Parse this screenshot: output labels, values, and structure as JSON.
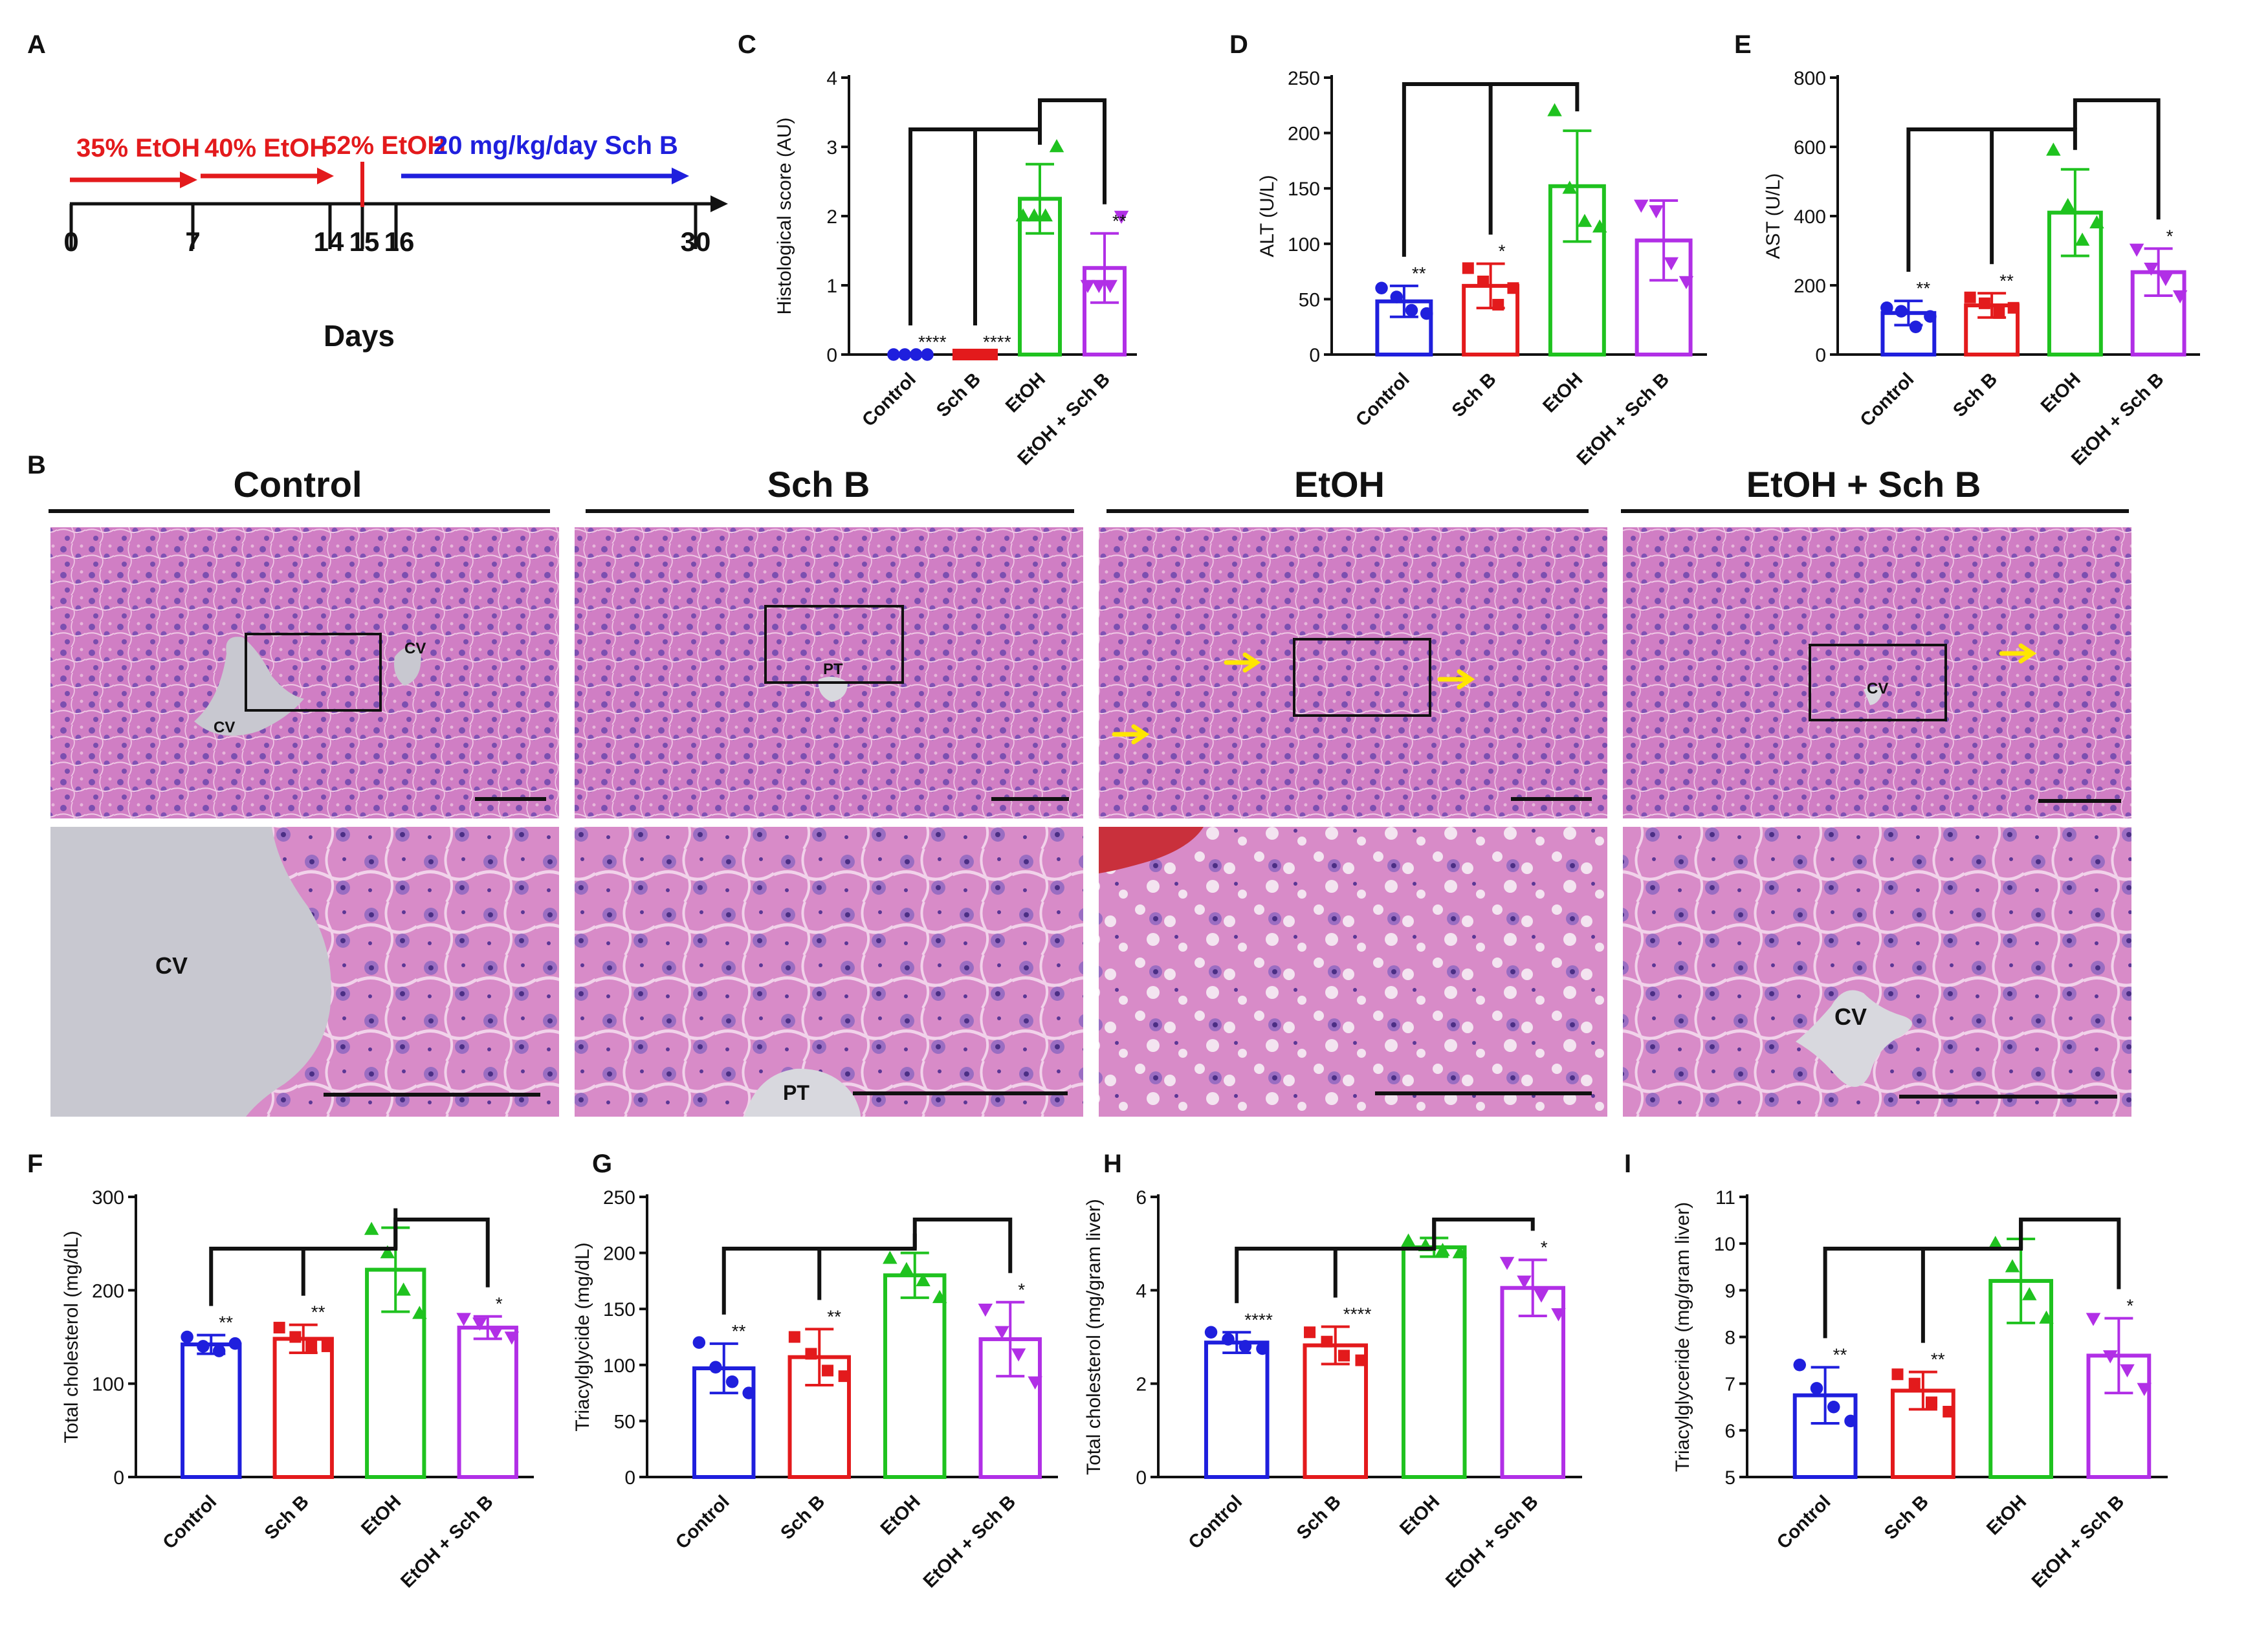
{
  "panel_letters": {
    "A": "A",
    "B": "B",
    "C": "C",
    "D": "D",
    "E": "E",
    "F": "F",
    "G": "G",
    "H": "H",
    "I": "I"
  },
  "colors": {
    "Control": "#1f1fdd",
    "Sch B": "#e31a1c",
    "EtOH": "#1fc21f",
    "EtOH + Sch B": "#b12fe6",
    "timeline_red": "#e31a1c",
    "timeline_blue": "#1f1fdd",
    "arrow": "#ffe600"
  },
  "timeline": {
    "ticks": [
      "0",
      "7",
      "14",
      "15",
      "16",
      "30"
    ],
    "xlabel": "Days",
    "segments": [
      "35% EtOH",
      "40% EtOH",
      "52% EtOH",
      "20 mg/kg/day Sch B"
    ]
  },
  "histology": {
    "headers": [
      "Control",
      "Sch B",
      "EtOH",
      "EtOH + Sch B"
    ],
    "labels": {
      "cv": "CV",
      "pt": "PT"
    }
  },
  "chart_data": [
    {
      "id": "C",
      "type": "bar",
      "ylabel": "Histological score (AU)",
      "ylim": [
        0,
        4
      ],
      "yticks": [
        0,
        1,
        2,
        3,
        4
      ],
      "categories": [
        "Control",
        "Sch B",
        "EtOH",
        "EtOH + Sch B"
      ],
      "values": [
        0,
        0,
        2.25,
        1.25
      ],
      "sd": [
        0,
        0,
        0.5,
        0.5
      ],
      "points": [
        [
          0,
          0,
          0,
          0
        ],
        [
          0,
          0,
          0,
          0
        ],
        [
          2.0,
          2.0,
          2.0,
          3.0
        ],
        [
          1.0,
          1.0,
          1.0,
          2.0
        ]
      ],
      "markers": [
        "circle",
        "square",
        "triangle-up",
        "triangle-down"
      ],
      "sig": [
        "****",
        "****",
        "",
        "**"
      ],
      "bracket": "mid"
    },
    {
      "id": "D",
      "type": "bar",
      "ylabel": "ALT (U/L)",
      "ylim": [
        0,
        250
      ],
      "yticks": [
        0,
        50,
        100,
        150,
        200,
        250
      ],
      "categories": [
        "Control",
        "Sch B",
        "EtOH",
        "EtOH + Sch B"
      ],
      "values": [
        48,
        62,
        152,
        103
      ],
      "sd": [
        14,
        20,
        50,
        36
      ],
      "points": [
        [
          60,
          52,
          40,
          37
        ],
        [
          78,
          66,
          45,
          60
        ],
        [
          220,
          150,
          120,
          115
        ],
        [
          135,
          130,
          83,
          66
        ]
      ],
      "markers": [
        "circle",
        "square",
        "triangle-up",
        "triangle-down"
      ],
      "sig": [
        "**",
        "*",
        "",
        ""
      ],
      "bracket": "wide"
    },
    {
      "id": "E",
      "type": "bar",
      "ylabel": "AST (U/L)",
      "ylim": [
        0,
        800
      ],
      "yticks": [
        0,
        200,
        400,
        600,
        800
      ],
      "categories": [
        "Control",
        "Sch B",
        "EtOH",
        "EtOH + Sch B"
      ],
      "values": [
        120,
        142,
        410,
        238
      ],
      "sd": [
        35,
        35,
        125,
        68
      ],
      "points": [
        [
          135,
          125,
          80,
          110
        ],
        [
          165,
          148,
          120,
          135
        ],
        [
          590,
          430,
          330,
          380
        ],
        [
          305,
          250,
          220,
          170
        ]
      ],
      "markers": [
        "circle",
        "square",
        "triangle-up",
        "triangle-down"
      ],
      "sig": [
        "**",
        "**",
        "",
        "*"
      ],
      "bracket": "mid"
    },
    {
      "id": "F",
      "type": "bar",
      "ylabel": "Total cholesterol (mg/dL)",
      "ylim": [
        0,
        300
      ],
      "yticks": [
        0,
        100,
        200,
        300
      ],
      "categories": [
        "Control",
        "Sch B",
        "EtOH",
        "EtOH + Sch B"
      ],
      "values": [
        142,
        148,
        222,
        160
      ],
      "sd": [
        10,
        15,
        45,
        12
      ],
      "points": [
        [
          150,
          140,
          135,
          143
        ],
        [
          160,
          150,
          140,
          140
        ],
        [
          265,
          240,
          200,
          175
        ],
        [
          170,
          165,
          155,
          150
        ]
      ],
      "markers": [
        "circle",
        "square",
        "triangle-up",
        "triangle-down"
      ],
      "sig": [
        "**",
        "**",
        "",
        "*"
      ],
      "bracket": "mid"
    },
    {
      "id": "G",
      "type": "bar",
      "ylabel": "Triacylglycide (mg/dL)",
      "ylim": [
        0,
        250
      ],
      "yticks": [
        0,
        50,
        100,
        150,
        200,
        250
      ],
      "categories": [
        "Control",
        "Sch B",
        "EtOH",
        "EtOH + Sch B"
      ],
      "values": [
        97,
        107,
        180,
        123
      ],
      "sd": [
        22,
        25,
        20,
        33
      ],
      "points": [
        [
          120,
          98,
          85,
          75
        ],
        [
          125,
          110,
          95,
          90
        ],
        [
          195,
          185,
          175,
          160
        ],
        [
          150,
          130,
          110,
          85
        ]
      ],
      "markers": [
        "circle",
        "square",
        "triangle-up",
        "triangle-down"
      ],
      "sig": [
        "**",
        "**",
        "",
        "*"
      ],
      "bracket": "mid"
    },
    {
      "id": "H",
      "type": "bar",
      "ylabel": "Total cholesterol (mg/gram liver)",
      "ylim": [
        0,
        6
      ],
      "yticks": [
        0,
        2,
        4,
        6
      ],
      "categories": [
        "Control",
        "Sch B",
        "EtOH",
        "EtOH + Sch B"
      ],
      "values": [
        2.88,
        2.82,
        4.92,
        4.05
      ],
      "sd": [
        0.22,
        0.4,
        0.2,
        0.6
      ],
      "points": [
        [
          3.1,
          2.95,
          2.8,
          2.75
        ],
        [
          3.1,
          2.9,
          2.6,
          2.5
        ],
        [
          5.05,
          4.95,
          4.85,
          4.8
        ],
        [
          4.6,
          4.2,
          3.9,
          3.5
        ]
      ],
      "markers": [
        "circle",
        "square",
        "triangle-up",
        "triangle-down"
      ],
      "sig": [
        "****",
        "****",
        "",
        "*"
      ],
      "bracket": "mid"
    },
    {
      "id": "I",
      "type": "bar",
      "ylabel": "Triacylglyceride (mg/gram liver)",
      "ylim": [
        5,
        11
      ],
      "yticks": [
        5,
        6,
        7,
        8,
        9,
        10,
        11
      ],
      "categories": [
        "Control",
        "Sch B",
        "EtOH",
        "EtOH + Sch B"
      ],
      "values": [
        6.75,
        6.85,
        9.2,
        7.6
      ],
      "sd": [
        0.6,
        0.4,
        0.9,
        0.8
      ],
      "points": [
        [
          7.4,
          6.9,
          6.5,
          6.2
        ],
        [
          7.2,
          7.0,
          6.6,
          6.4
        ],
        [
          10.0,
          9.5,
          8.9,
          8.4
        ],
        [
          8.4,
          7.6,
          7.3,
          6.9
        ]
      ],
      "markers": [
        "circle",
        "square",
        "triangle-up",
        "triangle-down"
      ],
      "sig": [
        "**",
        "**",
        "",
        "*"
      ],
      "bracket": "mid"
    }
  ]
}
